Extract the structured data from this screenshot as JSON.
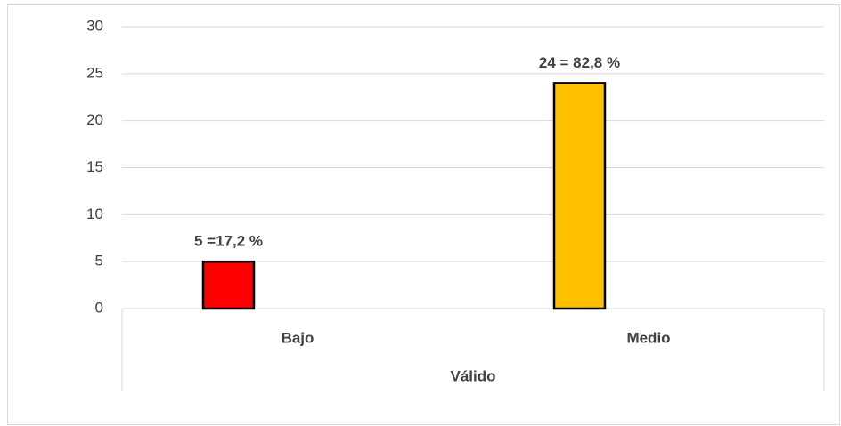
{
  "chart_data": {
    "type": "bar",
    "categories": [
      "Bajo",
      "Medio"
    ],
    "group_label": "Válido",
    "values": [
      5,
      24
    ],
    "value_labels": [
      "5 =17,2 %",
      "24 = 82,8 %"
    ],
    "colors": [
      "#ff0000",
      "#ffc000"
    ],
    "ylim": [
      0,
      30
    ],
    "yticks": [
      0,
      5,
      10,
      15,
      20,
      25,
      30
    ],
    "grid": true
  }
}
